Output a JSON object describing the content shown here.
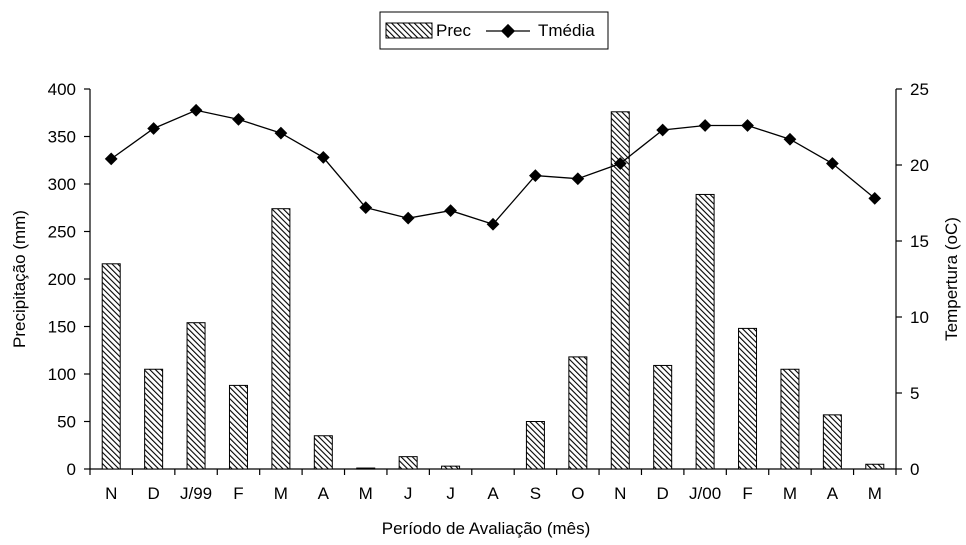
{
  "chart_data": {
    "type": "bar",
    "categories": [
      "N",
      "D",
      "J/99",
      "F",
      "M",
      "A",
      "M",
      "J",
      "J",
      "A",
      "S",
      "O",
      "N",
      "D",
      "J/00",
      "F",
      "M",
      "A",
      "M"
    ],
    "series": [
      {
        "name": "Prec",
        "type": "bar",
        "axis": "left",
        "values": [
          216,
          105,
          154,
          88,
          274,
          35,
          1,
          13,
          3,
          0,
          50,
          118,
          376,
          109,
          289,
          148,
          105,
          57,
          5
        ]
      },
      {
        "name": "Tmédia",
        "type": "line",
        "axis": "right",
        "values": [
          20.4,
          22.4,
          23.6,
          23.0,
          22.1,
          20.5,
          17.2,
          16.5,
          17.0,
          16.1,
          19.3,
          19.1,
          20.1,
          22.3,
          22.6,
          22.6,
          21.7,
          20.1,
          17.8
        ]
      }
    ],
    "xlabel": "Período de Avaliação (mês)",
    "ylabel": "Precipitação (mm)",
    "y2label": "Tempertura (oC)",
    "ylim": [
      0,
      400
    ],
    "y2lim": [
      0,
      25
    ],
    "yticks": [
      "0",
      "50",
      "100",
      "150",
      "200",
      "250",
      "300",
      "350",
      "400"
    ],
    "y2ticks": [
      "0",
      "5",
      "10",
      "15",
      "20",
      "25"
    ],
    "legend_position": "top-center",
    "grid": false
  }
}
